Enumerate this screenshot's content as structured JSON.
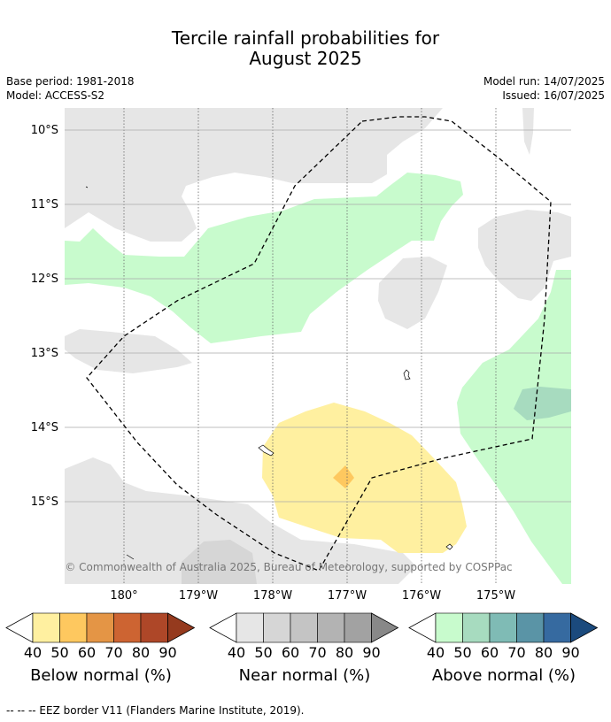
{
  "title": {
    "line1": "Tercile rainfall probabilities for",
    "line2": "August 2025"
  },
  "meta": {
    "base_period": "Base period: 1981-2018",
    "model": "Model: ACCESS-S2",
    "model_run": "Model run: 14/07/2025",
    "issued": "Issued: 16/07/2025"
  },
  "axes": {
    "lat_labels": [
      "10°S",
      "11°S",
      "12°S",
      "13°S",
      "14°S",
      "15°S"
    ],
    "lon_labels": [
      "180°",
      "179°W",
      "178°W",
      "177°W",
      "176°W",
      "175°W"
    ]
  },
  "copyright": "© Commonwealth of Australia 2025, Bureau of Meteorology, supported by COSPPac",
  "colorbars": [
    {
      "name": "below",
      "title": "Below normal (%)",
      "ticks": [
        "40",
        "50",
        "60",
        "70",
        "80",
        "90"
      ],
      "colors": [
        "#fff0a0",
        "#fec85f",
        "#e49545",
        "#cd6432",
        "#ae4728",
        "#953a1e"
      ]
    },
    {
      "name": "near",
      "title": "Near normal (%)",
      "ticks": [
        "40",
        "50",
        "60",
        "70",
        "80",
        "90"
      ],
      "colors": [
        "#e6e6e6",
        "#d6d6d6",
        "#c4c4c4",
        "#b3b3b3",
        "#a2a2a2",
        "#888888"
      ]
    },
    {
      "name": "above",
      "title": "Above normal (%)",
      "ticks": [
        "40",
        "50",
        "60",
        "70",
        "80",
        "90"
      ],
      "colors": [
        "#c8fbcd",
        "#a7dbbf",
        "#7fbbb5",
        "#5a94a6",
        "#366aa0",
        "#1b4a7d"
      ]
    }
  ],
  "footnote": "--  --  -- EEZ border V11 (Flanders Marine Institute, 2019)."
}
